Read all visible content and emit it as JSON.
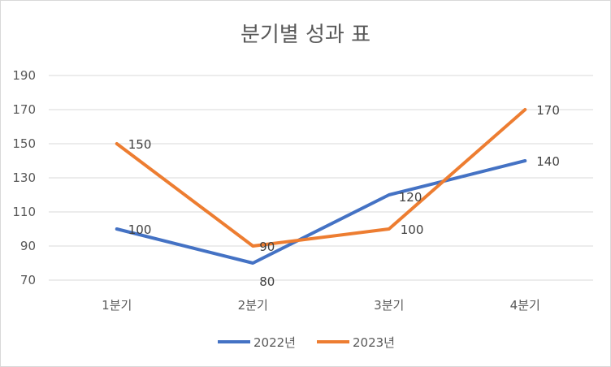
{
  "chart_data": {
    "type": "line",
    "title": "분기별 성과 표",
    "categories": [
      "1분기",
      "2분기",
      "3분기",
      "4분기"
    ],
    "series": [
      {
        "name": "2022년",
        "color": "#4472C4",
        "values": [
          100,
          80,
          120,
          140
        ]
      },
      {
        "name": "2023년",
        "color": "#ED7D31",
        "values": [
          150,
          90,
          100,
          170
        ]
      }
    ],
    "ylim": [
      70,
      190
    ],
    "yticks": [
      70,
      90,
      110,
      130,
      150,
      170,
      190
    ],
    "grid": true,
    "legend": "bottom",
    "xlabel": "",
    "ylabel": ""
  }
}
